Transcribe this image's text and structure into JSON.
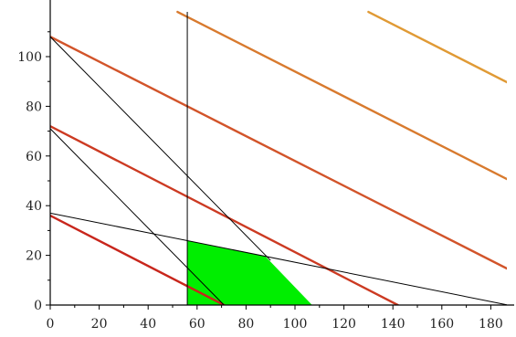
{
  "chart_data": {
    "type": "line",
    "title": "",
    "xlabel": "",
    "ylabel": "",
    "xlim": [
      0,
      190
    ],
    "ylim": [
      0,
      118
    ],
    "x_ticks": [
      0,
      20,
      40,
      60,
      80,
      100,
      120,
      140,
      160,
      180
    ],
    "y_ticks": [
      0,
      20,
      40,
      60,
      80,
      100
    ],
    "x_tick_labels": [
      "0",
      "20",
      "40",
      "60",
      "80",
      "100",
      "120",
      "140",
      "160",
      "180"
    ],
    "y_tick_labels": [
      "0",
      "20",
      "40",
      "60",
      "80",
      "100"
    ],
    "grid": false,
    "feasible_region": {
      "color": "#00ee00",
      "points": [
        [
          56,
          0
        ],
        [
          56,
          26
        ],
        [
          88,
          19.5
        ],
        [
          107,
          0
        ]
      ]
    },
    "constraints": [
      {
        "points": [
          [
            0,
            108
          ],
          [
            90,
            18
          ]
        ],
        "color": "#000000"
      },
      {
        "points": [
          [
            0,
            71
          ],
          [
            71,
            0
          ]
        ],
        "color": "#000000"
      },
      {
        "points": [
          [
            0,
            37
          ],
          [
            187,
            0
          ]
        ],
        "color": "#000000"
      },
      {
        "points": [
          [
            56,
            0
          ],
          [
            56,
            118
          ]
        ],
        "color": "#000000"
      }
    ],
    "objective_lines": [
      {
        "points": [
          [
            0,
            36
          ],
          [
            71,
            0
          ]
        ],
        "color": "#c8261c"
      },
      {
        "points": [
          [
            0,
            72
          ],
          [
            142,
            0
          ]
        ],
        "color": "#cc3a22"
      },
      {
        "points": [
          [
            0,
            108
          ],
          [
            190,
            13
          ]
        ],
        "color": "#d2542a"
      },
      {
        "points": [
          [
            52,
            118
          ],
          [
            190,
            49
          ]
        ],
        "color": "#d87a2e"
      },
      {
        "points": [
          [
            130,
            118
          ],
          [
            190,
            88
          ]
        ],
        "color": "#e09a35"
      }
    ]
  }
}
